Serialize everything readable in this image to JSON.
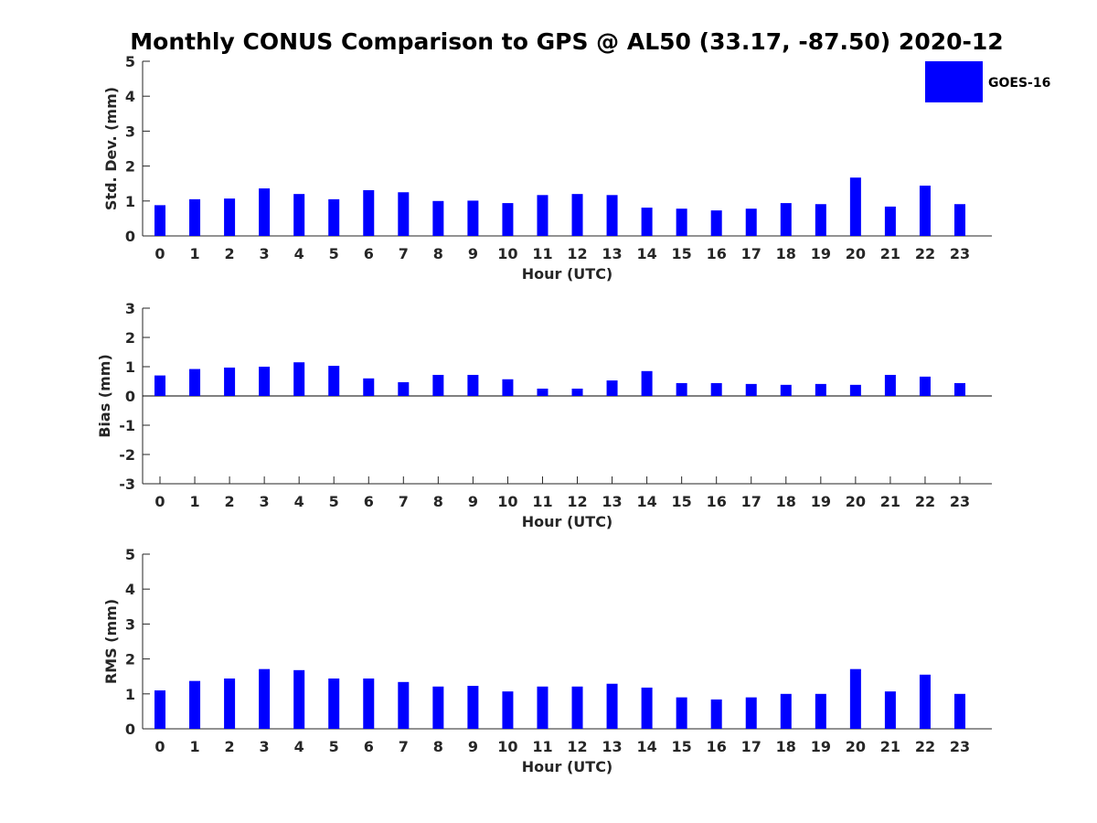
{
  "title": "Monthly CONUS Comparison to GPS @ AL50 (33.17, -87.50) 2020-12",
  "legend": {
    "label": "GOES-16",
    "color": "#0000ff",
    "position": "top-right"
  },
  "chart_data": [
    {
      "type": "bar",
      "xlabel": "Hour (UTC)",
      "ylabel": "Std. Dev. (mm)",
      "ylim": [
        0,
        5
      ],
      "yticks": [
        "0",
        "1",
        "2",
        "3",
        "4",
        "5"
      ],
      "categories": [
        "0",
        "1",
        "2",
        "3",
        "4",
        "5",
        "6",
        "7",
        "8",
        "9",
        "10",
        "11",
        "12",
        "13",
        "14",
        "15",
        "16",
        "17",
        "18",
        "19",
        "20",
        "21",
        "22",
        "23"
      ],
      "series": [
        {
          "name": "GOES-16",
          "color": "#0000ff",
          "values": [
            0.88,
            1.05,
            1.07,
            1.36,
            1.2,
            1.05,
            1.31,
            1.25,
            1.0,
            1.01,
            0.94,
            1.17,
            1.2,
            1.17,
            0.81,
            0.78,
            0.73,
            0.78,
            0.94,
            0.91,
            1.67,
            0.84,
            1.44,
            0.91
          ]
        }
      ]
    },
    {
      "type": "bar",
      "xlabel": "Hour (UTC)",
      "ylabel": "Bias (mm)",
      "ylim": [
        -3,
        3
      ],
      "yticks": [
        "-3",
        "-2",
        "-1",
        "0",
        "1",
        "2",
        "3"
      ],
      "categories": [
        "0",
        "1",
        "2",
        "3",
        "4",
        "5",
        "6",
        "7",
        "8",
        "9",
        "10",
        "11",
        "12",
        "13",
        "14",
        "15",
        "16",
        "17",
        "18",
        "19",
        "20",
        "21",
        "22",
        "23"
      ],
      "series": [
        {
          "name": "GOES-16",
          "color": "#0000ff",
          "values": [
            0.7,
            0.92,
            0.97,
            1.0,
            1.15,
            1.03,
            0.6,
            0.47,
            0.72,
            0.72,
            0.57,
            0.25,
            0.25,
            0.53,
            0.85,
            0.44,
            0.44,
            0.41,
            0.38,
            0.41,
            0.38,
            0.72,
            0.66,
            0.44
          ]
        }
      ]
    },
    {
      "type": "bar",
      "xlabel": "Hour (UTC)",
      "ylabel": "RMS (mm)",
      "ylim": [
        0,
        5
      ],
      "yticks": [
        "0",
        "1",
        "2",
        "3",
        "4",
        "5"
      ],
      "categories": [
        "0",
        "1",
        "2",
        "3",
        "4",
        "5",
        "6",
        "7",
        "8",
        "9",
        "10",
        "11",
        "12",
        "13",
        "14",
        "15",
        "16",
        "17",
        "18",
        "19",
        "20",
        "21",
        "22",
        "23"
      ],
      "series": [
        {
          "name": "GOES-16",
          "color": "#0000ff",
          "values": [
            1.1,
            1.37,
            1.44,
            1.71,
            1.68,
            1.44,
            1.44,
            1.34,
            1.21,
            1.23,
            1.07,
            1.21,
            1.21,
            1.29,
            1.18,
            0.9,
            0.84,
            0.9,
            1.0,
            1.0,
            1.71,
            1.07,
            1.55,
            1.0
          ]
        }
      ]
    }
  ]
}
